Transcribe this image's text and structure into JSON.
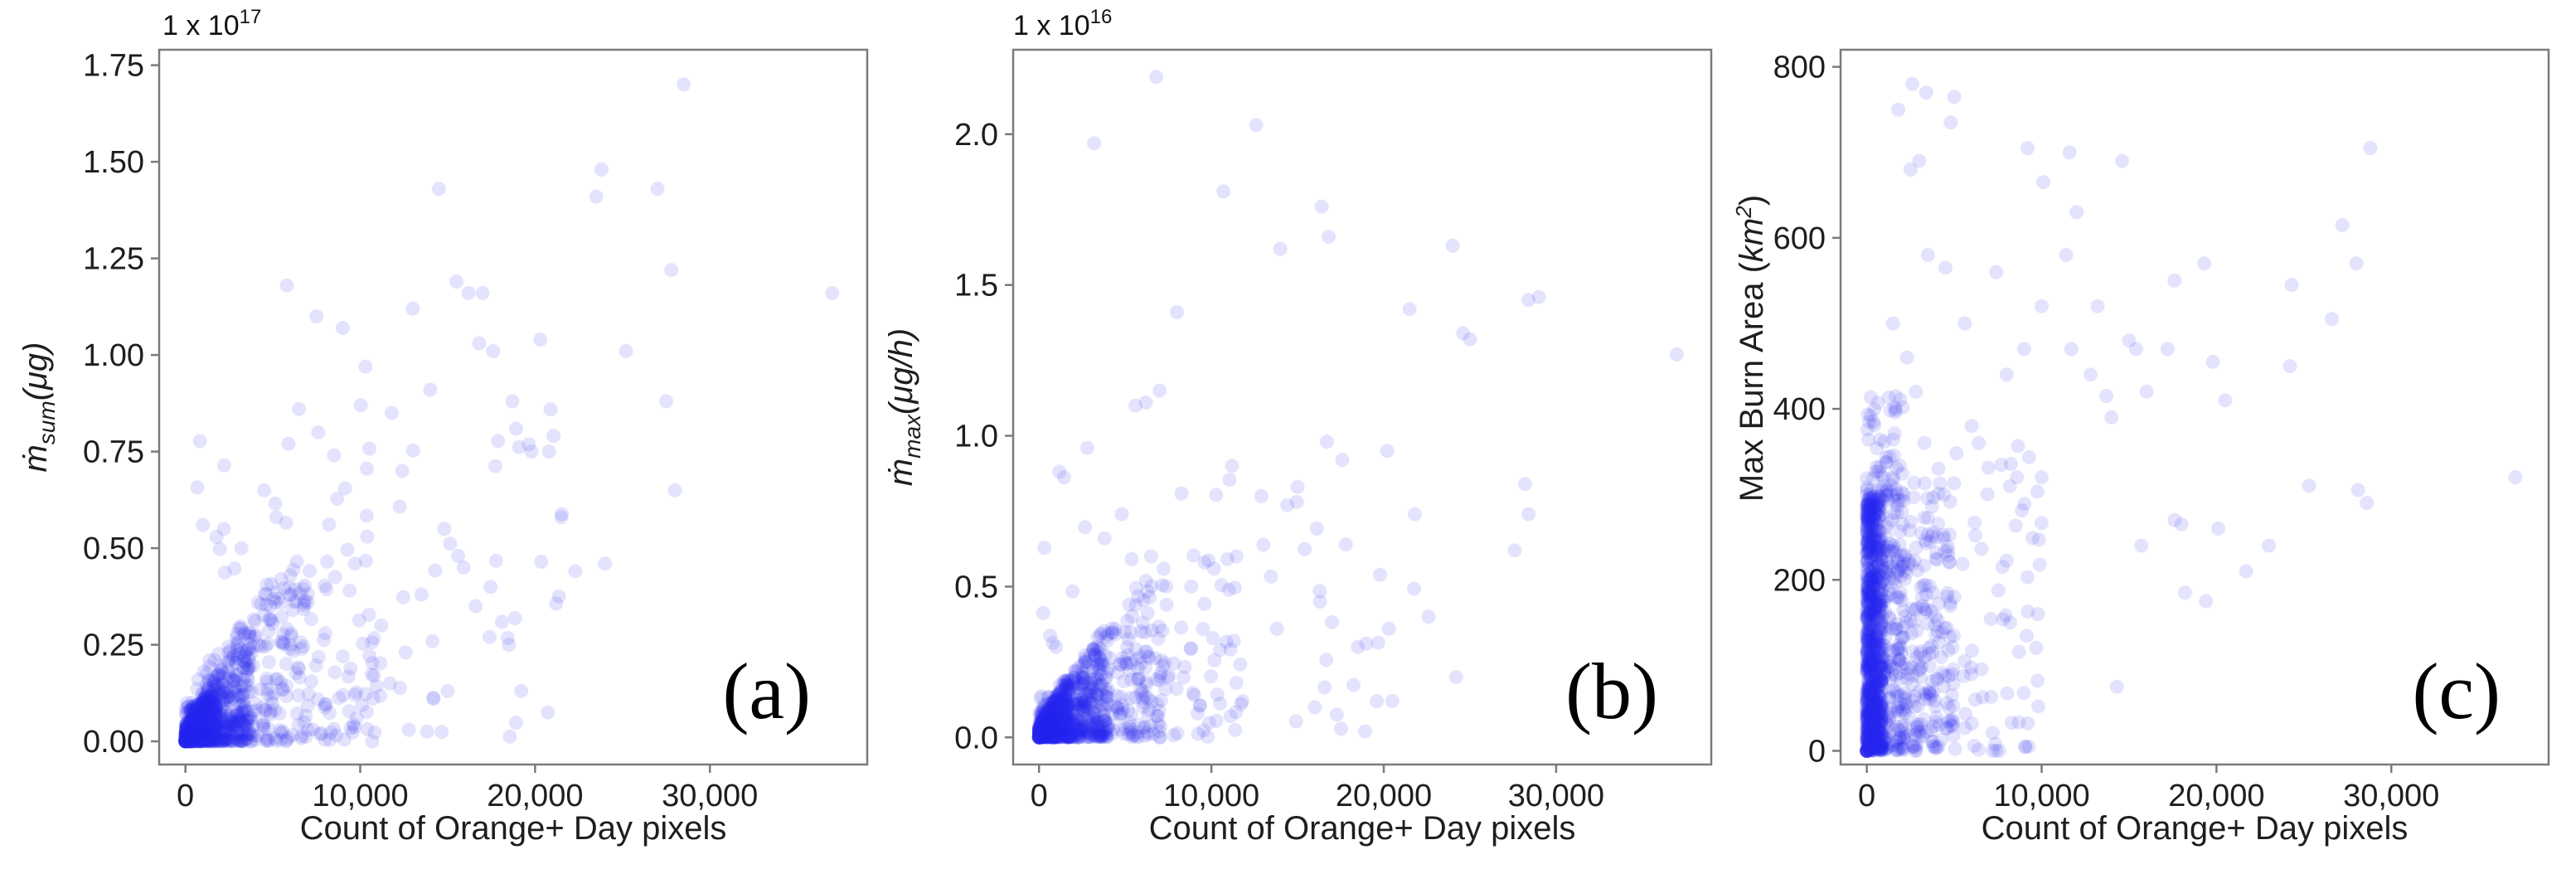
{
  "chart_data": [
    {
      "type": "scatter",
      "panel_label": "(a)",
      "scale_factor": "1 x 10",
      "scale_exponent": "17",
      "xlabel": "Count of Orange+ Day pixels",
      "ylabel_main": "ṁ",
      "ylabel_sub": "sum",
      "ylabel_unit": "(μg)",
      "xlim": [
        -1500,
        39000
      ],
      "ylim": [
        -0.06,
        1.79
      ],
      "xticks": [
        0,
        10000,
        20000,
        30000
      ],
      "xtick_labels": [
        "0",
        "10,000",
        "20,000",
        "30,000"
      ],
      "yticks": [
        0,
        0.25,
        0.5,
        0.75,
        1.0,
        1.25,
        1.5,
        1.75
      ],
      "ytick_labels": [
        "0.00",
        "0.25",
        "0.50",
        "0.75",
        "1.00",
        "1.25",
        "1.50",
        "1.75"
      ],
      "marker_color": "#2a2af0",
      "marker_alpha": 0.13,
      "grid": false,
      "points": [
        [
          28500,
          1.7
        ],
        [
          23800,
          1.48
        ],
        [
          23500,
          1.41
        ],
        [
          27000,
          1.43
        ],
        [
          14500,
          1.43
        ],
        [
          37000,
          1.16
        ],
        [
          27800,
          1.22
        ],
        [
          16200,
          1.16
        ],
        [
          17000,
          1.16
        ],
        [
          13000,
          1.12
        ],
        [
          7500,
          1.1
        ],
        [
          5800,
          1.18
        ],
        [
          9000,
          1.07
        ],
        [
          15500,
          1.19
        ],
        [
          16800,
          1.03
        ],
        [
          25200,
          1.01
        ],
        [
          20300,
          1.04
        ],
        [
          17600,
          1.01
        ],
        [
          10300,
          0.97
        ],
        [
          27500,
          0.88
        ],
        [
          11800,
          0.85
        ],
        [
          14000,
          0.91
        ],
        [
          18700,
          0.88
        ],
        [
          6500,
          0.86
        ],
        [
          5900,
          0.77
        ],
        [
          7600,
          0.8
        ],
        [
          8500,
          0.74
        ],
        [
          12400,
          0.7
        ],
        [
          19800,
          0.75
        ],
        [
          20800,
          0.75
        ],
        [
          21500,
          0.58
        ],
        [
          14800,
          0.55
        ],
        [
          15600,
          0.48
        ],
        [
          28000,
          0.65
        ],
        [
          24000,
          0.46
        ],
        [
          22300,
          0.44
        ],
        [
          18500,
          0.25
        ],
        [
          17400,
          0.27
        ],
        [
          16600,
          0.35
        ],
        [
          13500,
          0.38
        ],
        [
          9700,
          0.46
        ],
        [
          10400,
          0.53
        ],
        [
          11200,
          0.3
        ],
        [
          12600,
          0.23
        ],
        [
          15000,
          0.13
        ],
        [
          14200,
          0.11
        ],
        [
          11700,
          0.15
        ],
        [
          4500,
          0.65
        ],
        [
          5200,
          0.58
        ],
        [
          2200,
          0.55
        ],
        [
          1000,
          0.56
        ],
        [
          3200,
          0.5
        ],
        [
          6000,
          0.43
        ],
        [
          7000,
          0.36
        ],
        [
          8000,
          0.28
        ],
        [
          9000,
          0.22
        ]
      ],
      "clusters": [
        {
          "n": 460,
          "xmax": 1800,
          "ymax": 0.18,
          "shape": "wedge"
        },
        {
          "n": 380,
          "xmax": 3800,
          "ymax": 0.32,
          "shape": "wedge"
        },
        {
          "n": 260,
          "xmax": 7000,
          "ymax": 0.55,
          "shape": "wedge"
        },
        {
          "n": 140,
          "xmax": 11000,
          "ymax": 0.8,
          "shape": "wedge"
        },
        {
          "n": 60,
          "xmax": 22000,
          "ymax": 0.9,
          "shape": "spread"
        }
      ]
    },
    {
      "type": "scatter",
      "panel_label": "(b)",
      "scale_factor": "1 x 10",
      "scale_exponent": "16",
      "xlabel": "Count of Orange+ Day pixels",
      "ylabel_main": "ṁ",
      "ylabel_sub": "max",
      "ylabel_unit": "(μg/h)",
      "xlim": [
        -1500,
        39000
      ],
      "ylim": [
        -0.09,
        2.28
      ],
      "xticks": [
        0,
        10000,
        20000,
        30000
      ],
      "xtick_labels": [
        "0",
        "10,000",
        "20,000",
        "30,000"
      ],
      "yticks": [
        0,
        0.5,
        1.0,
        1.5,
        2.0
      ],
      "ytick_labels": [
        "0.0",
        "0.5",
        "1.0",
        "1.5",
        "2.0"
      ],
      "marker_color": "#2a2af0",
      "marker_alpha": 0.13,
      "grid": false,
      "points": [
        [
          6800,
          2.19
        ],
        [
          12600,
          2.03
        ],
        [
          3200,
          1.97
        ],
        [
          10700,
          1.81
        ],
        [
          16400,
          1.76
        ],
        [
          16800,
          1.66
        ],
        [
          21500,
          1.42
        ],
        [
          14000,
          1.62
        ],
        [
          24000,
          1.63
        ],
        [
          29000,
          1.46
        ],
        [
          37000,
          1.27
        ],
        [
          8000,
          1.41
        ],
        [
          28400,
          1.45
        ],
        [
          25000,
          1.32
        ],
        [
          24600,
          1.34
        ],
        [
          7000,
          1.15
        ],
        [
          6200,
          1.11
        ],
        [
          5600,
          1.1
        ],
        [
          11200,
          0.9
        ],
        [
          17600,
          0.92
        ],
        [
          16700,
          0.98
        ],
        [
          20200,
          0.95
        ],
        [
          2800,
          0.96
        ],
        [
          15000,
          0.83
        ],
        [
          14400,
          0.77
        ],
        [
          12900,
          0.8
        ],
        [
          28200,
          0.84
        ],
        [
          28400,
          0.74
        ],
        [
          21800,
          0.74
        ],
        [
          17800,
          0.64
        ],
        [
          27600,
          0.62
        ],
        [
          9600,
          0.58
        ],
        [
          16300,
          0.45
        ],
        [
          22600,
          0.4
        ],
        [
          20300,
          0.36
        ],
        [
          13800,
          0.36
        ],
        [
          11300,
          0.32
        ],
        [
          24200,
          0.2
        ],
        [
          18500,
          0.3
        ],
        [
          16000,
          0.1
        ],
        [
          11800,
          0.12
        ],
        [
          19600,
          0.12
        ],
        [
          9000,
          0.14
        ],
        [
          10500,
          0.29
        ],
        [
          7400,
          0.44
        ],
        [
          6500,
          0.6
        ],
        [
          4800,
          0.74
        ],
        [
          3800,
          0.66
        ]
      ],
      "clusters": [
        {
          "n": 460,
          "xmax": 1800,
          "ymax": 0.22,
          "shape": "wedge"
        },
        {
          "n": 380,
          "xmax": 4000,
          "ymax": 0.38,
          "shape": "wedge"
        },
        {
          "n": 260,
          "xmax": 7500,
          "ymax": 0.62,
          "shape": "wedge"
        },
        {
          "n": 120,
          "xmax": 12000,
          "ymax": 0.85,
          "shape": "wedge"
        },
        {
          "n": 50,
          "xmax": 22000,
          "ymax": 0.9,
          "shape": "spread"
        }
      ]
    },
    {
      "type": "scatter",
      "panel_label": "(c)",
      "xlabel": "Count of Orange+ Day pixels",
      "ylabel_main": "Max Burn Area ",
      "ylabel_unit_base": "km",
      "ylabel_unit_exp": "2",
      "xlim": [
        -1500,
        39000
      ],
      "ylim": [
        -16,
        820
      ],
      "xticks": [
        0,
        10000,
        20000,
        30000
      ],
      "xtick_labels": [
        "0",
        "10,000",
        "20,000",
        "30,000"
      ],
      "yticks": [
        0,
        200,
        400,
        600,
        800
      ],
      "ytick_labels": [
        "0",
        "200",
        "400",
        "600",
        "800"
      ],
      "marker_color": "#2a2af0",
      "marker_alpha": 0.13,
      "grid": false,
      "points": [
        [
          2600,
          780
        ],
        [
          3400,
          770
        ],
        [
          5000,
          765
        ],
        [
          1800,
          750
        ],
        [
          4800,
          735
        ],
        [
          28800,
          705
        ],
        [
          9200,
          705
        ],
        [
          11600,
          700
        ],
        [
          14600,
          690
        ],
        [
          3000,
          690
        ],
        [
          2500,
          680
        ],
        [
          10100,
          665
        ],
        [
          27200,
          615
        ],
        [
          12000,
          630
        ],
        [
          3500,
          580
        ],
        [
          11400,
          580
        ],
        [
          19300,
          570
        ],
        [
          28000,
          570
        ],
        [
          7400,
          560
        ],
        [
          4500,
          565
        ],
        [
          17600,
          550
        ],
        [
          24300,
          545
        ],
        [
          13200,
          520
        ],
        [
          26600,
          505
        ],
        [
          10000,
          520
        ],
        [
          5600,
          500
        ],
        [
          15000,
          480
        ],
        [
          17200,
          470
        ],
        [
          15400,
          470
        ],
        [
          9000,
          470
        ],
        [
          24200,
          450
        ],
        [
          19800,
          455
        ],
        [
          11700,
          470
        ],
        [
          8000,
          440
        ],
        [
          16000,
          420
        ],
        [
          12800,
          440
        ],
        [
          13700,
          415
        ],
        [
          20500,
          410
        ],
        [
          14000,
          390
        ],
        [
          6000,
          380
        ],
        [
          10000,
          320
        ],
        [
          25300,
          310
        ],
        [
          28600,
          290
        ],
        [
          37100,
          320
        ],
        [
          28100,
          305
        ],
        [
          20100,
          260
        ],
        [
          18000,
          265
        ],
        [
          17600,
          270
        ],
        [
          15700,
          240
        ],
        [
          23000,
          240
        ],
        [
          19400,
          175
        ],
        [
          21700,
          210
        ],
        [
          18200,
          185
        ],
        [
          6400,
          360
        ],
        [
          6900,
          300
        ],
        [
          4100,
          330
        ],
        [
          3300,
          360
        ],
        [
          2800,
          420
        ],
        [
          2300,
          460
        ],
        [
          1500,
          500
        ],
        [
          4000,
          250
        ],
        [
          5000,
          180
        ],
        [
          8200,
          150
        ],
        [
          14300,
          75
        ]
      ],
      "clusters": [
        {
          "n": 700,
          "xmax": 900,
          "ymax": 300,
          "shape": "column"
        },
        {
          "n": 300,
          "xmax": 2200,
          "ymax": 420,
          "shape": "column"
        },
        {
          "n": 260,
          "xmax": 5000,
          "ymax": 320,
          "shape": "spread"
        },
        {
          "n": 120,
          "xmax": 10000,
          "ymax": 360,
          "shape": "spread"
        }
      ]
    }
  ]
}
